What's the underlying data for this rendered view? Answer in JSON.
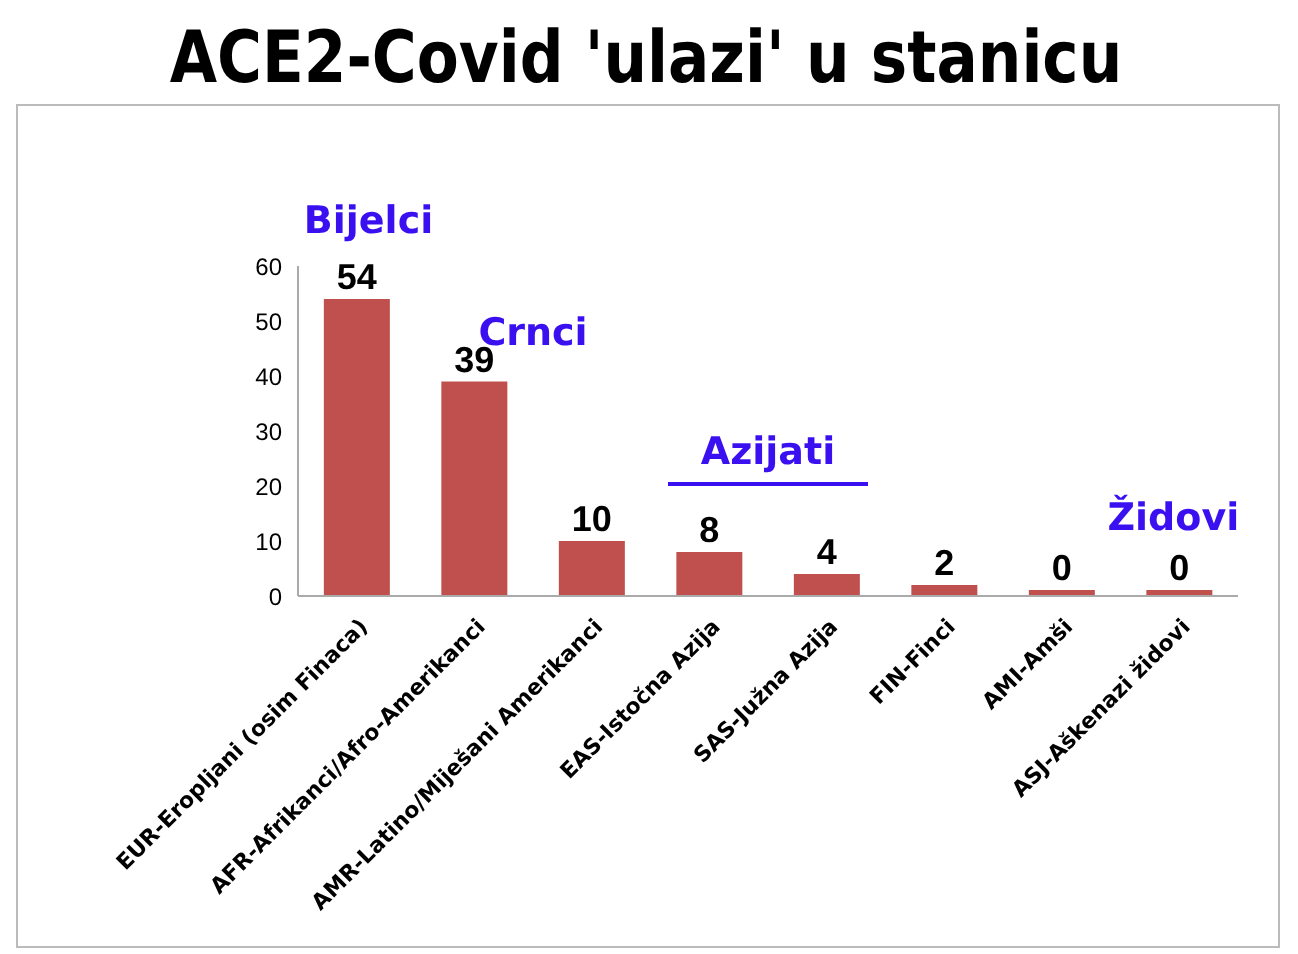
{
  "chart_data": {
    "type": "bar",
    "title": "ACE2-Covid 'ulazi' u stanicu",
    "categories": [
      "EUR-Eropljani (osim Finaca)",
      "AFR-Afrikanci/Afro-Amerikanci",
      "AMR-Latino/Miješani Amerikanci",
      "EAS-Istočna Azija",
      "SAS-Južna Azija",
      "FIN-Finci",
      "AMI-Amši",
      "ASJ-Aškenazi židovi"
    ],
    "values": [
      54,
      39,
      10,
      8,
      4,
      2,
      0,
      0
    ],
    "color": "#c0504d",
    "ylim": [
      0,
      60
    ],
    "yticks": [
      0,
      10,
      20,
      30,
      40,
      50,
      60
    ],
    "grid": false,
    "data_labels": true,
    "annotations": [
      "Bijelci",
      "Crnci",
      "Azijati",
      "Židovi"
    ]
  }
}
